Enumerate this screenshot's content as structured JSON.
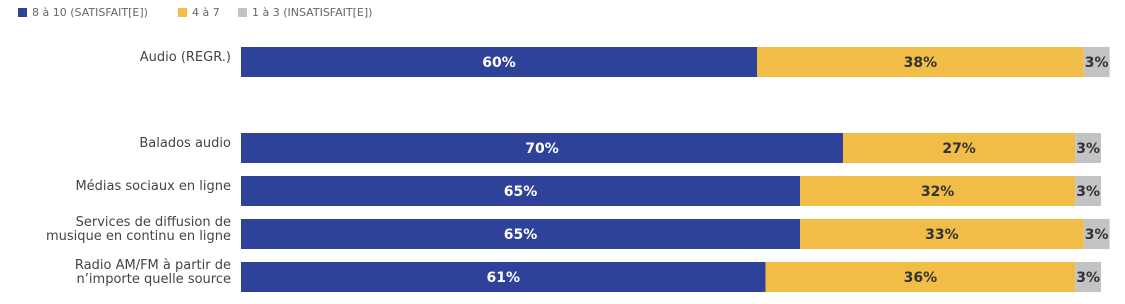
{
  "chart_data": {
    "type": "stacked-bar",
    "categories": [
      "Audio (REGR.)",
      null,
      "Balados audio",
      "Médias sociaux en ligne",
      "Services de diffusion de musique en continu en ligne",
      "Radio AM/FM à partir de n’importe quelle source"
    ],
    "series": [
      {
        "name": "8 à 10 (SATISFAIT[E])",
        "color": "#2e4299",
        "values": [
          60,
          null,
          70,
          65,
          65,
          61
        ],
        "value_labels": [
          "60%",
          null,
          "70%",
          "65%",
          "65%",
          "61%"
        ]
      },
      {
        "name": "4 à 7",
        "color": "#f2bd47",
        "values": [
          38,
          null,
          27,
          32,
          33,
          36
        ],
        "value_labels": [
          "38%",
          null,
          "27%",
          "32%",
          "33%",
          "36%"
        ]
      },
      {
        "name": "1 à 3 (INSATISFAIT[E])",
        "color": "#c3c3c3",
        "values": [
          3,
          null,
          3,
          3,
          3,
          3
        ],
        "value_labels": [
          "3%",
          null,
          "3%",
          "3%",
          "3%",
          "3%"
        ]
      }
    ]
  }
}
